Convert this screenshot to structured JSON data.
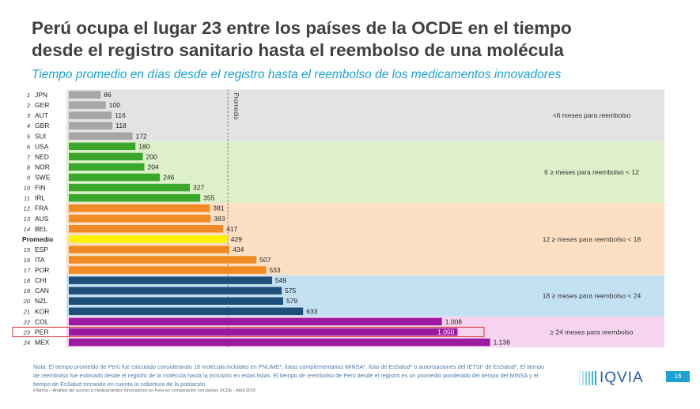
{
  "header": {
    "title_line1": "Perú ocupa el lugar 23 entre los países de la OCDE en el tiempo",
    "title_line2": "desde el registro sanitario hasta el reembolso de una molécula",
    "subtitle": "Tiempo promedio en días desde el registro hasta el reembolso de los medicamentos innovadores"
  },
  "chart_data": {
    "type": "bar",
    "orientation": "horizontal",
    "title": "Tiempo promedio en días desde el registro hasta el reembolso de los medicamentos innovadores",
    "xlabel": "",
    "ylabel": "",
    "xlim": [
      0,
      1200
    ],
    "reference_line": {
      "label": "Promedio",
      "value": 429
    },
    "rows": [
      {
        "rank": "1",
        "label": "JPN",
        "value": 86,
        "value_label": "86",
        "group": 0
      },
      {
        "rank": "2",
        "label": "GER",
        "value": 100,
        "value_label": "100",
        "group": 0
      },
      {
        "rank": "3",
        "label": "AUT",
        "value": 116,
        "value_label": "116",
        "group": 0
      },
      {
        "rank": "4",
        "label": "GBR",
        "value": 118,
        "value_label": "118",
        "group": 0
      },
      {
        "rank": "5",
        "label": "SUI",
        "value": 172,
        "value_label": "172",
        "group": 0
      },
      {
        "rank": "6",
        "label": "USA",
        "value": 180,
        "value_label": "180",
        "group": 1
      },
      {
        "rank": "7",
        "label": "NED",
        "value": 200,
        "value_label": "200",
        "group": 1
      },
      {
        "rank": "8",
        "label": "NOR",
        "value": 204,
        "value_label": "204",
        "group": 1
      },
      {
        "rank": "9",
        "label": "SWE",
        "value": 246,
        "value_label": "246",
        "group": 1
      },
      {
        "rank": "10",
        "label": "FIN",
        "value": 327,
        "value_label": "327",
        "group": 1
      },
      {
        "rank": "11",
        "label": "IRL",
        "value": 355,
        "value_label": "355",
        "group": 1
      },
      {
        "rank": "12",
        "label": "FRA",
        "value": 381,
        "value_label": "381",
        "group": 2
      },
      {
        "rank": "13",
        "label": "AUS",
        "value": 383,
        "value_label": "383",
        "group": 2
      },
      {
        "rank": "14",
        "label": "BEL",
        "value": 417,
        "value_label": "417",
        "group": 2
      },
      {
        "rank": "",
        "label": "Promedio",
        "value": 429,
        "value_label": "429",
        "group": 2,
        "average": true
      },
      {
        "rank": "15",
        "label": "ESP",
        "value": 434,
        "value_label": "434",
        "group": 2
      },
      {
        "rank": "16",
        "label": "ITA",
        "value": 507,
        "value_label": "507",
        "group": 2
      },
      {
        "rank": "17",
        "label": "POR",
        "value": 533,
        "value_label": "533",
        "group": 2
      },
      {
        "rank": "18",
        "label": "CHI",
        "value": 549,
        "value_label": "549",
        "group": 3
      },
      {
        "rank": "19",
        "label": "CAN",
        "value": 575,
        "value_label": "575",
        "group": 3
      },
      {
        "rank": "20",
        "label": "NZL",
        "value": 579,
        "value_label": "579",
        "group": 3
      },
      {
        "rank": "21",
        "label": "KOR",
        "value": 633,
        "value_label": "633",
        "group": 3
      },
      {
        "rank": "22",
        "label": "COL",
        "value": 1008,
        "value_label": "1.008",
        "group": 4
      },
      {
        "rank": "23",
        "label": "PER",
        "value": 1050,
        "value_label": "1.050",
        "group": 4,
        "highlight": true
      },
      {
        "rank": "24",
        "label": "MEX",
        "value": 1138,
        "value_label": "1.138",
        "group": 4
      }
    ],
    "groups": [
      {
        "label": "<6 meses para reembolso",
        "bar_color": "#a6a6a6",
        "band_color": "#e3e3e3"
      },
      {
        "label": "6 ≥ meses para reembolso < 12",
        "bar_color": "#3aa62c",
        "band_color": "#ddf0c9"
      },
      {
        "label": "12 ≥ meses para reembolso < 18",
        "bar_color": "#f08a24",
        "band_color": "#fde0c4"
      },
      {
        "label": "18 ≥ meses para reembolso < 24",
        "bar_color": "#1f4e79",
        "band_color": "#c4e1f4"
      },
      {
        "label": "≥ 24 meses para reembolso",
        "bar_color": "#9c1aa0",
        "band_color": "#f6d4f0"
      }
    ],
    "average_bar_color": "#fff200",
    "highlight_color": "#e0312b"
  },
  "footer": {
    "note": "Nota: El tiempo promedio de Perú fue calculado considerando 18 molécula incluidas en PNUME*, listas complementarias MINSA*, lista de EsSalud* o autorizaciones del IETSI* de EsSalud*. El tiempo de reembolso fue estimado desde el registro de la molécula hasta la inclusión en estas listas. El tiempo de reembolso de Perú desde el registro es un promedio ponderado del tiempo del MINSA y el tiempo de EsSalud tomando en cuenta la cobertura de la población",
    "source": "Fifarma – Análisis del acceso a medicamentos innovadores en Perú en comparación con países OCDE - Abril 2019",
    "logo": "IQVIA",
    "page_number": "16"
  }
}
